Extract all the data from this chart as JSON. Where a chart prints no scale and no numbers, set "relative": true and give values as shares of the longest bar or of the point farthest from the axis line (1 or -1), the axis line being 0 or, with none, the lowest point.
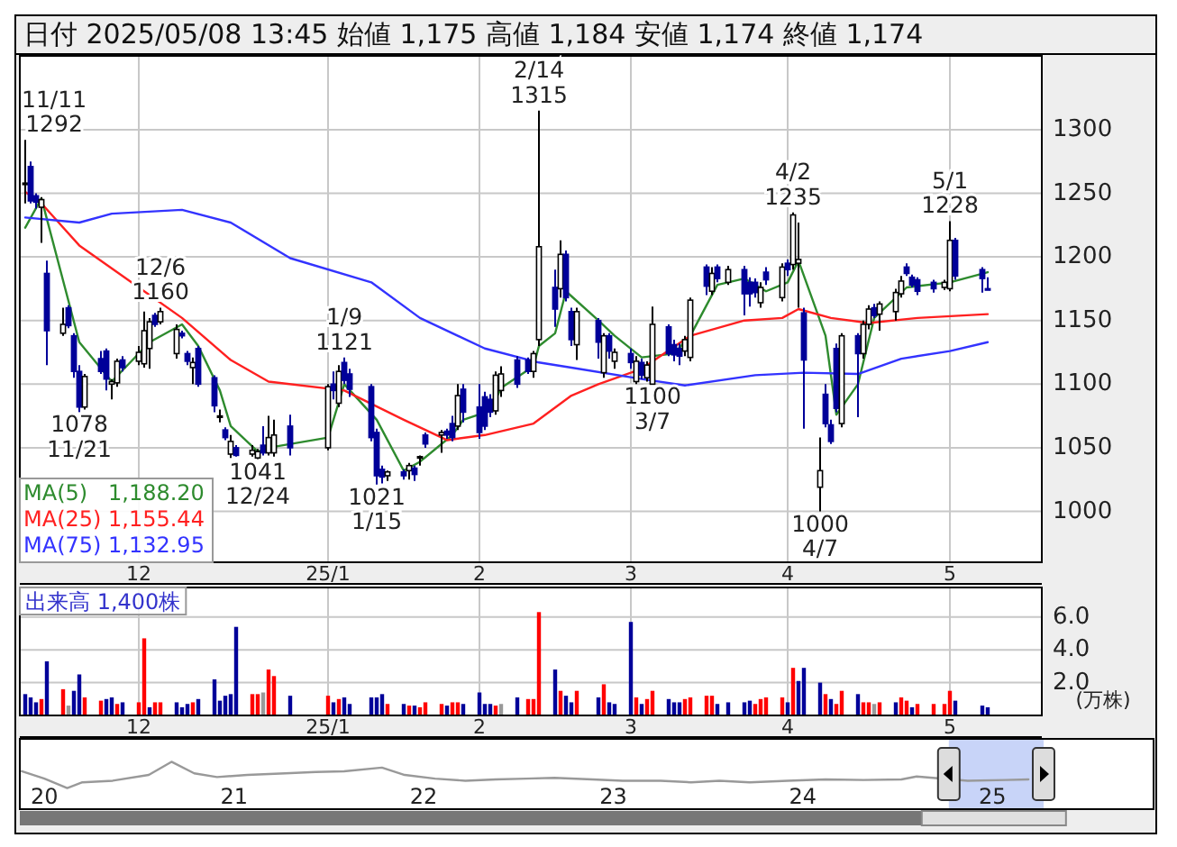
{
  "chart_data": [
    {
      "type": "candlestick",
      "title": "日付 2025/05/08 13:45 始値 1,175 高値 1,184 安値 1,174 終値 1,174",
      "x": [
        "2024-11-11",
        "2024-11-12",
        "2024-11-13",
        "2024-11-14",
        "2024-11-15",
        "2024-11-18",
        "2024-11-19",
        "2024-11-20",
        "2024-11-21",
        "2024-11-22",
        "2024-11-25",
        "2024-11-26",
        "2024-11-27",
        "2024-11-28",
        "2024-11-29",
        "2024-12-02",
        "2024-12-03",
        "2024-12-04",
        "2024-12-05",
        "2024-12-06",
        "2024-12-09",
        "2024-12-10",
        "2024-12-11",
        "2024-12-12",
        "2024-12-13",
        "2024-12-16",
        "2024-12-17",
        "2024-12-18",
        "2024-12-19",
        "2024-12-20",
        "2024-12-23",
        "2024-12-24",
        "2024-12-25",
        "2024-12-26",
        "2024-12-27",
        "2024-12-30",
        "2025-01-06",
        "2025-01-07",
        "2025-01-08",
        "2025-01-09",
        "2025-01-10",
        "2025-01-14",
        "2025-01-15",
        "2025-01-16",
        "2025-01-17",
        "2025-01-20",
        "2025-01-21",
        "2025-01-22",
        "2025-01-23",
        "2025-01-24",
        "2025-01-27",
        "2025-01-28",
        "2025-01-29",
        "2025-01-30",
        "2025-01-31",
        "2025-02-03",
        "2025-02-04",
        "2025-02-05",
        "2025-02-06",
        "2025-02-07",
        "2025-02-10",
        "2025-02-12",
        "2025-02-13",
        "2025-02-14",
        "2025-02-17",
        "2025-02-18",
        "2025-02-19",
        "2025-02-20",
        "2025-02-21",
        "2025-02-25",
        "2025-02-26",
        "2025-02-27",
        "2025-02-28",
        "2025-03-03",
        "2025-03-04",
        "2025-03-05",
        "2025-03-06",
        "2025-03-07",
        "2025-03-10",
        "2025-03-11",
        "2025-03-12",
        "2025-03-13",
        "2025-03-14",
        "2025-03-17",
        "2025-03-18",
        "2025-03-19",
        "2025-03-21",
        "2025-03-24",
        "2025-03-25",
        "2025-03-26",
        "2025-03-27",
        "2025-03-28",
        "2025-03-31",
        "2025-04-01",
        "2025-04-02",
        "2025-04-03",
        "2025-04-04",
        "2025-04-07",
        "2025-04-08",
        "2025-04-09",
        "2025-04-10",
        "2025-04-11",
        "2025-04-14",
        "2025-04-15",
        "2025-04-16",
        "2025-04-17",
        "2025-04-18",
        "2025-04-21",
        "2025-04-22",
        "2025-04-23",
        "2025-04-24",
        "2025-04-25",
        "2025-04-28",
        "2025-04-30",
        "2025-05-01",
        "2025-05-02",
        "2025-05-07",
        "2025-05-08"
      ],
      "ohlc": [
        [
          1257,
          1292,
          1242,
          1258
        ],
        [
          1271,
          1275,
          1242,
          1244
        ],
        [
          1248,
          1250,
          1238,
          1243
        ],
        [
          1239,
          1247,
          1211,
          1245
        ],
        [
          1187,
          1197,
          1115,
          1142
        ],
        [
          1140,
          1160,
          1138,
          1147
        ],
        [
          1160,
          1162,
          1144,
          1146
        ],
        [
          1138,
          1140,
          1105,
          1110
        ],
        [
          1110,
          1115,
          1078,
          1082
        ],
        [
          1082,
          1108,
          1080,
          1106
        ],
        [
          1120,
          1126,
          1108,
          1110
        ],
        [
          1126,
          1128,
          1095,
          1104
        ],
        [
          1100,
          1104,
          1088,
          1102
        ],
        [
          1101,
          1120,
          1098,
          1118
        ],
        [
          1119,
          1122,
          1110,
          1113
        ],
        [
          1118,
          1130,
          1115,
          1125
        ],
        [
          1116,
          1157,
          1113,
          1142
        ],
        [
          1128,
          1152,
          1112,
          1149
        ],
        [
          1154,
          1156,
          1145,
          1147
        ],
        [
          1149,
          1160,
          1147,
          1157
        ],
        [
          1124,
          1147,
          1120,
          1143
        ],
        [
          1140,
          1142,
          1136,
          1138
        ],
        [
          1124,
          1126,
          1115,
          1118
        ],
        [
          1113,
          1121,
          1100,
          1117
        ],
        [
          1128,
          1130,
          1098,
          1100
        ],
        [
          1105,
          1107,
          1078,
          1083
        ],
        [
          1075,
          1080,
          1070,
          1075
        ],
        [
          1064,
          1066,
          1056,
          1058
        ],
        [
          1045,
          1060,
          1042,
          1055
        ],
        [
          1050,
          1052,
          1043,
          1044
        ],
        [
          1045,
          1052,
          1043,
          1048
        ],
        [
          1042,
          1049,
          1041,
          1047
        ],
        [
          1052,
          1067,
          1044,
          1046
        ],
        [
          1046,
          1075,
          1044,
          1058
        ],
        [
          1046,
          1072,
          1043,
          1060
        ],
        [
          1067,
          1076,
          1044,
          1050
        ],
        [
          1050,
          1100,
          1048,
          1098
        ],
        [
          1100,
          1110,
          1088,
          1095
        ],
        [
          1085,
          1115,
          1082,
          1110
        ],
        [
          1117,
          1121,
          1100,
          1103
        ],
        [
          1108,
          1112,
          1090,
          1096
        ],
        [
          1098,
          1100,
          1055,
          1058
        ],
        [
          1062,
          1065,
          1021,
          1028
        ],
        [
          1033,
          1036,
          1022,
          1027
        ],
        [
          1028,
          1032,
          1024,
          1031
        ],
        [
          1031,
          1033,
          1025,
          1028
        ],
        [
          1032,
          1038,
          1025,
          1036
        ],
        [
          1034,
          1036,
          1024,
          1029
        ],
        [
          1043,
          1044,
          1036,
          1043
        ],
        [
          1060,
          1062,
          1050,
          1053
        ],
        [
          1060,
          1064,
          1046,
          1062
        ],
        [
          1063,
          1065,
          1057,
          1060
        ],
        [
          1069,
          1075,
          1055,
          1058
        ],
        [
          1067,
          1100,
          1064,
          1091
        ],
        [
          1096,
          1100,
          1070,
          1078
        ],
        [
          1082,
          1100,
          1057,
          1062
        ],
        [
          1090,
          1094,
          1064,
          1067
        ],
        [
          1088,
          1092,
          1074,
          1078
        ],
        [
          1079,
          1110,
          1076,
          1107
        ],
        [
          1095,
          1114,
          1090,
          1108
        ],
        [
          1119,
          1122,
          1097,
          1100
        ],
        [
          1119,
          1121,
          1108,
          1110
        ],
        [
          1110,
          1126,
          1105,
          1124
        ],
        [
          1135,
          1315,
          1130,
          1208
        ],
        [
          1176,
          1190,
          1145,
          1159
        ],
        [
          1175,
          1213,
          1168,
          1202
        ],
        [
          1202,
          1205,
          1165,
          1168
        ],
        [
          1157,
          1160,
          1130,
          1135
        ],
        [
          1131,
          1160,
          1119,
          1157
        ],
        [
          1150,
          1152,
          1120,
          1133
        ],
        [
          1109,
          1140,
          1105,
          1138
        ],
        [
          1138,
          1140,
          1120,
          1126
        ],
        [
          1118,
          1128,
          1112,
          1125
        ],
        [
          1124,
          1128,
          1112,
          1117
        ],
        [
          1102,
          1122,
          1100,
          1118
        ],
        [
          1117,
          1120,
          1104,
          1107
        ],
        [
          1105,
          1118,
          1102,
          1115
        ],
        [
          1100,
          1161,
          1100,
          1147
        ],
        [
          1145,
          1147,
          1122,
          1124
        ],
        [
          1131,
          1135,
          1118,
          1123
        ],
        [
          1128,
          1132,
          1115,
          1122
        ],
        [
          1126,
          1138,
          1122,
          1135
        ],
        [
          1121,
          1168,
          1118,
          1166
        ],
        [
          1192,
          1194,
          1170,
          1177
        ],
        [
          1173,
          1192,
          1170,
          1187
        ],
        [
          1192,
          1194,
          1180,
          1183
        ],
        [
          1180,
          1193,
          1178,
          1190
        ],
        [
          1190,
          1193,
          1154,
          1171
        ],
        [
          1180,
          1184,
          1161,
          1171
        ],
        [
          1180,
          1183,
          1168,
          1172
        ],
        [
          1164,
          1180,
          1160,
          1176
        ],
        [
          1188,
          1192,
          1178,
          1182
        ],
        [
          1168,
          1195,
          1165,
          1192
        ],
        [
          1195,
          1198,
          1185,
          1190
        ],
        [
          1194,
          1235,
          1190,
          1233
        ],
        [
          1195,
          1227,
          1160,
          1198
        ],
        [
          1156,
          1160,
          1065,
          1119
        ],
        [
          1019,
          1058,
          1000,
          1032
        ],
        [
          1092,
          1100,
          1066,
          1069
        ],
        [
          1068,
          1072,
          1053,
          1055
        ],
        [
          1128,
          1132,
          1078,
          1081
        ],
        [
          1069,
          1140,
          1066,
          1138
        ],
        [
          1138,
          1140,
          1074,
          1124
        ],
        [
          1124,
          1150,
          1120,
          1147
        ],
        [
          1147,
          1162,
          1143,
          1159
        ],
        [
          1160,
          1163,
          1152,
          1154
        ],
        [
          1155,
          1165,
          1142,
          1163
        ],
        [
          1157,
          1175,
          1150,
          1172
        ],
        [
          1171,
          1185,
          1168,
          1181
        ],
        [
          1192,
          1195,
          1185,
          1187
        ],
        [
          1184,
          1186,
          1176,
          1178
        ],
        [
          1182,
          1184,
          1170,
          1173
        ],
        [
          1180,
          1182,
          1172,
          1175
        ],
        [
          1176,
          1182,
          1174,
          1180
        ],
        [
          1175,
          1228,
          1173,
          1213
        ],
        [
          1213,
          1215,
          1182,
          1185
        ],
        [
          1190,
          1192,
          1172,
          1183
        ],
        [
          1175,
          1184,
          1174,
          1174
        ]
      ],
      "series": [
        {
          "type": "line",
          "name": "MA(5)   1,188.20",
          "color": "#2e8b2e",
          "x": [
            "2024-11-11",
            "2024-11-14",
            "2024-11-21",
            "2024-11-27",
            "2024-12-04",
            "2024-12-10",
            "2024-12-13",
            "2024-12-17",
            "2024-12-19",
            "2024-12-24",
            "2024-12-26",
            "2025-01-06",
            "2025-01-09",
            "2025-01-15",
            "2025-01-20",
            "2025-01-23",
            "2025-01-29",
            "2025-01-31",
            "2025-02-05",
            "2025-02-07",
            "2025-02-13",
            "2025-02-14",
            "2025-02-17",
            "2025-02-19",
            "2025-02-25",
            "2025-02-28",
            "2025-03-05",
            "2025-03-11",
            "2025-03-14",
            "2025-03-19",
            "2025-03-24",
            "2025-03-28",
            "2025-04-01",
            "2025-04-03",
            "2025-04-08",
            "2025-04-10",
            "2025-04-14",
            "2025-04-17",
            "2025-04-23",
            "2025-05-01",
            "2025-05-08"
          ],
          "values": [
            1223,
            1246,
            1133,
            1102,
            1133,
            1147,
            1130,
            1095,
            1067,
            1047,
            1050,
            1058,
            1100,
            1072,
            1032,
            1039,
            1060,
            1072,
            1079,
            1097,
            1114,
            1130,
            1140,
            1173,
            1150,
            1138,
            1121,
            1124,
            1138,
            1178,
            1183,
            1173,
            1180,
            1197,
            1138,
            1076,
            1100,
            1152,
            1176,
            1180,
            1188
          ]
        },
        {
          "type": "line",
          "name": "MA(25) 1,155.44",
          "color": "#ff2020",
          "x": [
            "2024-11-11",
            "2024-11-14",
            "2024-11-21",
            "2024-12-02",
            "2024-12-10",
            "2024-12-19",
            "2024-12-26",
            "2025-01-09",
            "2025-01-20",
            "2025-01-28",
            "2025-02-04",
            "2025-02-13",
            "2025-02-20",
            "2025-02-25",
            "2025-03-05",
            "2025-03-14",
            "2025-03-24",
            "2025-03-31",
            "2025-04-03",
            "2025-04-09",
            "2025-04-16",
            "2025-04-25",
            "2025-05-08"
          ],
          "values": [
            1251,
            1242,
            1209,
            1176,
            1152,
            1119,
            1102,
            1095,
            1072,
            1056,
            1060,
            1069,
            1091,
            1100,
            1112,
            1138,
            1150,
            1152,
            1159,
            1152,
            1148,
            1152,
            1155
          ]
        },
        {
          "type": "line",
          "name": "MA(75) 1,132.95",
          "color": "#3333ff",
          "x": [
            "2024-11-11",
            "2024-11-21",
            "2024-11-27",
            "2024-12-10",
            "2024-12-19",
            "2024-12-30",
            "2025-01-14",
            "2025-01-23",
            "2025-02-04",
            "2025-02-14",
            "2025-02-20",
            "2025-03-05",
            "2025-03-13",
            "2025-03-26",
            "2025-04-04",
            "2025-04-14",
            "2025-04-22",
            "2025-05-01",
            "2025-05-08"
          ],
          "values": [
            1231,
            1227,
            1234,
            1237,
            1227,
            1199,
            1180,
            1152,
            1128,
            1117,
            1113,
            1104,
            1099,
            1107,
            1109,
            1108,
            1120,
            1126,
            1133
          ]
        }
      ],
      "annotations": [
        {
          "text": "11/11\n1292",
          "x": "2024-11-11",
          "y": 1292
        },
        {
          "text": "1078\n11/21",
          "x": "2024-11-21",
          "y": 1078
        },
        {
          "text": "12/6\n1160",
          "x": "2024-12-06",
          "y": 1160
        },
        {
          "text": "1041\n12/24",
          "x": "2024-12-24",
          "y": 1041
        },
        {
          "text": "1/9\n1121",
          "x": "2025-01-09",
          "y": 1121
        },
        {
          "text": "1021\n1/15",
          "x": "2025-01-15",
          "y": 1021
        },
        {
          "text": "2/14\n1315",
          "x": "2025-02-14",
          "y": 1315
        },
        {
          "text": "1100\n3/7",
          "x": "2025-03-07",
          "y": 1100
        },
        {
          "text": "4/2\n1235",
          "x": "2025-04-02",
          "y": 1235
        },
        {
          "text": "1000\n4/7",
          "x": "2025-04-07",
          "y": 1000
        },
        {
          "text": "5/1\n1228",
          "x": "2025-05-01",
          "y": 1228
        }
      ],
      "xlim": [
        "2024-11-10",
        "2025-05-18"
      ],
      "ylim": [
        960,
        1358
      ],
      "yticks": [
        1000,
        1050,
        1100,
        1150,
        1200,
        1250,
        1300
      ],
      "xticks": [
        {
          "value": "2024-12-02",
          "label": "12"
        },
        {
          "value": "2025-01-06",
          "label": "25/1"
        },
        {
          "value": "2025-02-03",
          "label": "2"
        },
        {
          "value": "2025-03-03",
          "label": "3"
        },
        {
          "value": "2025-04-01",
          "label": "4"
        },
        {
          "value": "2025-05-01",
          "label": "5"
        }
      ],
      "grid": true,
      "legend": "bottom left"
    },
    {
      "type": "bar",
      "title": "出来高 1,400株",
      "ylabel": "(万株)",
      "x": [
        "2024-11-11",
        "2024-11-12",
        "2024-11-13",
        "2024-11-14",
        "2024-11-15",
        "2024-11-18",
        "2024-11-19",
        "2024-11-20",
        "2024-11-21",
        "2024-11-22",
        "2024-11-25",
        "2024-11-26",
        "2024-11-27",
        "2024-11-28",
        "2024-11-29",
        "2024-12-02",
        "2024-12-03",
        "2024-12-04",
        "2024-12-05",
        "2024-12-06",
        "2024-12-09",
        "2024-12-10",
        "2024-12-11",
        "2024-12-12",
        "2024-12-13",
        "2024-12-16",
        "2024-12-17",
        "2024-12-18",
        "2024-12-19",
        "2024-12-20",
        "2024-12-23",
        "2024-12-24",
        "2024-12-25",
        "2024-12-26",
        "2024-12-27",
        "2024-12-30",
        "2025-01-06",
        "2025-01-07",
        "2025-01-08",
        "2025-01-09",
        "2025-01-10",
        "2025-01-14",
        "2025-01-15",
        "2025-01-16",
        "2025-01-17",
        "2025-01-20",
        "2025-01-21",
        "2025-01-22",
        "2025-01-23",
        "2025-01-24",
        "2025-01-27",
        "2025-01-28",
        "2025-01-29",
        "2025-01-30",
        "2025-01-31",
        "2025-02-03",
        "2025-02-04",
        "2025-02-05",
        "2025-02-06",
        "2025-02-07",
        "2025-02-10",
        "2025-02-12",
        "2025-02-13",
        "2025-02-14",
        "2025-02-17",
        "2025-02-18",
        "2025-02-19",
        "2025-02-20",
        "2025-02-21",
        "2025-02-25",
        "2025-02-26",
        "2025-02-27",
        "2025-02-28",
        "2025-03-03",
        "2025-03-04",
        "2025-03-05",
        "2025-03-06",
        "2025-03-07",
        "2025-03-10",
        "2025-03-11",
        "2025-03-12",
        "2025-03-13",
        "2025-03-14",
        "2025-03-17",
        "2025-03-18",
        "2025-03-19",
        "2025-03-21",
        "2025-03-24",
        "2025-03-25",
        "2025-03-26",
        "2025-03-27",
        "2025-03-28",
        "2025-03-31",
        "2025-04-01",
        "2025-04-02",
        "2025-04-03",
        "2025-04-04",
        "2025-04-07",
        "2025-04-08",
        "2025-04-09",
        "2025-04-10",
        "2025-04-11",
        "2025-04-14",
        "2025-04-15",
        "2025-04-16",
        "2025-04-17",
        "2025-04-18",
        "2025-04-21",
        "2025-04-22",
        "2025-04-23",
        "2025-04-24",
        "2025-04-25",
        "2025-04-28",
        "2025-04-30",
        "2025-05-01",
        "2025-05-02",
        "2025-05-07",
        "2025-05-08"
      ],
      "values": [
        1.3,
        1.1,
        0.8,
        1.0,
        3.3,
        1.6,
        0.6,
        1.5,
        2.5,
        1.1,
        0.9,
        1.0,
        1.1,
        0.7,
        0.8,
        0.8,
        4.7,
        0.5,
        0.8,
        0.8,
        0.8,
        0.5,
        0.7,
        0.8,
        1.0,
        2.2,
        0.9,
        1.2,
        1.3,
        5.4,
        1.3,
        1.3,
        1.4,
        2.8,
        2.4,
        1.2,
        1.2,
        0.8,
        1.0,
        1.1,
        0.7,
        1.1,
        1.1,
        1.3,
        0.7,
        0.7,
        0.6,
        0.6,
        0.5,
        0.8,
        0.7,
        0.6,
        0.8,
        0.8,
        0.7,
        1.4,
        0.7,
        0.7,
        0.6,
        0.7,
        1.1,
        1.0,
        1.0,
        6.3,
        2.8,
        1.5,
        1.2,
        0.8,
        1.5,
        1.1,
        1.9,
        0.8,
        0.7,
        5.7,
        1.1,
        0.7,
        1.0,
        1.5,
        1.0,
        0.8,
        0.8,
        1.0,
        1.1,
        1.2,
        1.2,
        0.7,
        0.8,
        0.8,
        0.9,
        0.7,
        1.0,
        1.1,
        1.1,
        0.8,
        2.9,
        2.1,
        2.9,
        2.0,
        1.3,
        1.0,
        0.7,
        1.5,
        1.3,
        0.8,
        0.8,
        0.7,
        0.8,
        0.8,
        1.1,
        0.9,
        0.5,
        0.7,
        0.7,
        0.7,
        1.5,
        0.9,
        0.6,
        0.5
      ],
      "colors": [
        "#000099",
        "#000099",
        "#000099",
        "#ff0000",
        "#000099",
        "#ff0000",
        "#999999",
        "#000099",
        "#000099",
        "#ff0000",
        "#ff0000",
        "#000099",
        "#000099",
        "#ff0000",
        "#000099",
        "#ff0000",
        "#ff0000",
        "#000099",
        "#ff0000",
        "#ff0000",
        "#000099",
        "#000099",
        "#000099",
        "#ff0000",
        "#000099",
        "#000099",
        "#000099",
        "#000099",
        "#000099",
        "#000099",
        "#ff0000",
        "#ff0000",
        "#999999",
        "#ff0000",
        "#ff0000",
        "#000099",
        "#ff0000",
        "#000099",
        "#ff0000",
        "#000099",
        "#000099",
        "#000099",
        "#000099",
        "#000099",
        "#ff0000",
        "#000099",
        "#ff0000",
        "#000099",
        "#ff0000",
        "#ff0000",
        "#ff0000",
        "#000099",
        "#ff0000",
        "#ff0000",
        "#000099",
        "#000099",
        "#000099",
        "#000099",
        "#ff0000",
        "#999999",
        "#000099",
        "#ff0000",
        "#ff0000",
        "#ff0000",
        "#000099",
        "#ff0000",
        "#000099",
        "#000099",
        "#ff0000",
        "#000099",
        "#ff0000",
        "#000099",
        "#000099",
        "#000099",
        "#ff0000",
        "#000099",
        "#ff0000",
        "#ff0000",
        "#000099",
        "#000099",
        "#000099",
        "#ff0000",
        "#ff0000",
        "#ff0000",
        "#ff0000",
        "#000099",
        "#000099",
        "#000099",
        "#000099",
        "#ff0000",
        "#ff0000",
        "#ff0000",
        "#ff0000",
        "#000099",
        "#ff0000",
        "#000099",
        "#000099",
        "#000099",
        "#ff0000",
        "#000099",
        "#ff0000",
        "#ff0000",
        "#000099",
        "#ff0000",
        "#ff0000",
        "#999999",
        "#ff0000",
        "#000099",
        "#ff0000",
        "#ff0000",
        "#000099",
        "#ff0000",
        "#ff0000",
        "#ff0000",
        "#ff0000",
        "#000099",
        "#000099",
        "#000099"
      ],
      "xlim": [
        "2024-11-10",
        "2025-05-18"
      ],
      "ylim": [
        0,
        7.8
      ],
      "yticks": [
        {
          "value": 2,
          "label": "2.0"
        },
        {
          "value": 4,
          "label": "4.0"
        },
        {
          "value": 6,
          "label": "6.0"
        }
      ],
      "xticks": [
        {
          "value": "2024-12-02",
          "label": "12"
        },
        {
          "value": "2025-01-06",
          "label": "25/1"
        },
        {
          "value": "2025-02-03",
          "label": "2"
        },
        {
          "value": "2025-03-03",
          "label": "3"
        },
        {
          "value": "2025-04-01",
          "label": "4"
        },
        {
          "value": "2025-05-01",
          "label": "5"
        }
      ],
      "grid": true
    },
    {
      "type": "line",
      "relative": true,
      "x": [
        2019.88,
        2020.0,
        2020.12,
        2020.2,
        2020.36,
        2020.55,
        2020.67,
        2020.79,
        2020.91,
        2021.07,
        2021.27,
        2021.43,
        2021.58,
        2021.78,
        2021.9,
        2022.06,
        2022.22,
        2022.38,
        2022.54,
        2022.69,
        2022.89,
        2023.05,
        2023.25,
        2023.41,
        2023.56,
        2023.72,
        2023.92,
        2024.12,
        2024.32,
        2024.52,
        2024.6,
        2024.87,
        2025.07,
        2025.19
      ],
      "series": [
        {
          "color": "#999999",
          "values": [
            0.64,
            0.36,
            0,
            0.22,
            0.28,
            0.5,
            1,
            0.56,
            0.42,
            0.5,
            0.56,
            0.61,
            0.64,
            0.78,
            0.5,
            0.36,
            0.28,
            0.33,
            0.36,
            0.39,
            0.33,
            0.28,
            0.28,
            0.22,
            0.28,
            0.22,
            0.28,
            0.33,
            0.31,
            0.33,
            0.44,
            0.28,
            0.31,
            0.33
          ]
        }
      ],
      "xlim": [
        2019.87,
        2025.85
      ],
      "xticks": [
        {
          "value": 2020,
          "label": "20"
        },
        {
          "value": 2021,
          "label": "21"
        },
        {
          "value": 2022,
          "label": "22"
        },
        {
          "value": 2023,
          "label": "23"
        },
        {
          "value": 2024,
          "label": "24"
        },
        {
          "value": 2025,
          "label": "25"
        }
      ],
      "bands": [
        {
          "axis": "x",
          "from": 2024.77,
          "to": 2025.27,
          "color": "#c8d4f8"
        }
      ]
    }
  ]
}
